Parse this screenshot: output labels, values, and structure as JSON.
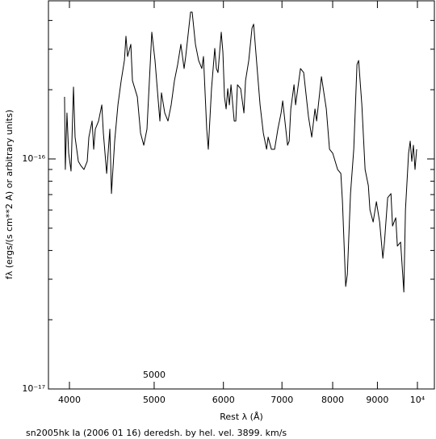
{
  "chart_data": {
    "type": "line",
    "title": "sn2005hk Ia (2006 01 16) deredsh. by hel. vel.  3899. km/s",
    "x_label": "Rest λ (Å)",
    "y_label": "fλ (ergs/(s cm**2 A) or arbitrary units)",
    "annotation": "5000",
    "color": "#000000",
    "log_x": true,
    "log_y": true,
    "xlim": [
      3785,
      10457
    ],
    "ylim": [
      1e-17,
      4.87e-16
    ],
    "xticks": [
      4000,
      5000,
      6000,
      7000,
      8000,
      9000,
      {
        "value": 10000,
        "label": "10⁴"
      }
    ],
    "yticks": [
      {
        "value": 1e-17,
        "label": "10⁻¹⁷"
      },
      {
        "value": 1e-16,
        "label": "10⁻¹⁶"
      }
    ],
    "yminorticks": [
      2e-17,
      3e-17,
      4e-17,
      5e-17,
      6e-17,
      7e-17,
      8e-17,
      9e-17,
      2e-16,
      3e-16,
      4e-16
    ],
    "x": [
      3949,
      3957,
      3974,
      3992,
      4017,
      4043,
      4060,
      4095,
      4121,
      4156,
      4192,
      4210,
      4246,
      4264,
      4282,
      4319,
      4356,
      4374,
      4412,
      4449,
      4468,
      4506,
      4545,
      4584,
      4623,
      4642,
      4662,
      4702,
      4722,
      4783,
      4824,
      4865,
      4906,
      4927,
      4969,
      5011,
      5054,
      5076,
      5097,
      5141,
      5185,
      5229,
      5274,
      5319,
      5364,
      5410,
      5433,
      5503,
      5526,
      5574,
      5621,
      5669,
      5693,
      5742,
      5766,
      5815,
      5865,
      5890,
      5915,
      5966,
      5992,
      6017,
      6043,
      6069,
      6095,
      6121,
      6173,
      6199,
      6226,
      6279,
      6333,
      6360,
      6414,
      6469,
      6497,
      6552,
      6608,
      6665,
      6722,
      6750,
      6808,
      6866,
      6925,
      6984,
      7014,
      7104,
      7134,
      7165,
      7226,
      7256,
      7350,
      7412,
      7507,
      7571,
      7636,
      7669,
      7767,
      7867,
      7934,
      8002,
      8105,
      8174,
      8209,
      8279,
      8315,
      8385,
      8457,
      8529,
      8566,
      8639,
      8713,
      8788,
      8825,
      8900,
      8976,
      9053,
      9130,
      9169,
      9247,
      9327,
      9366,
      9446,
      9486,
      9567,
      9649,
      9690,
      9770,
      9812,
      9853,
      9895,
      9937,
      9980
    ],
    "values": [
      1.863e-16,
      9e-17,
      1.585e-16,
      1.058e-16,
      8.86e-17,
      2.053e-16,
      1.244e-16,
      9.76e-17,
      9.37e-17,
      9e-17,
      9.76e-17,
      1.244e-16,
      1.462e-16,
      1.102e-16,
      1.348e-16,
      1.462e-16,
      1.718e-16,
      1.295e-16,
      8.65e-17,
      1.348e-16,
      7.07e-17,
      1.195e-16,
      1.718e-16,
      2.19e-16,
      2.68e-16,
      3.415e-16,
      2.79e-16,
      3.15e-16,
      2.19e-16,
      1.863e-16,
      1.295e-16,
      1.147e-16,
      1.348e-16,
      1.863e-16,
      3.556e-16,
      2.68e-16,
      1.789e-16,
      1.462e-16,
      1.94e-16,
      1.585e-16,
      1.462e-16,
      1.718e-16,
      2.19e-16,
      2.573e-16,
      3.15e-16,
      2.472e-16,
      2.79e-16,
      4.351e-16,
      4.351e-16,
      3.15e-16,
      2.68e-16,
      2.472e-16,
      2.79e-16,
      1.348e-16,
      1.102e-16,
      2.02e-16,
      3.025e-16,
      2.472e-16,
      2.374e-16,
      3.556e-16,
      2.905e-16,
      1.863e-16,
      1.65e-16,
      2.02e-16,
      1.718e-16,
      2.102e-16,
      1.462e-16,
      1.462e-16,
      2.102e-16,
      2.02e-16,
      1.585e-16,
      2.19e-16,
      2.68e-16,
      3.702e-16,
      3.855e-16,
      2.573e-16,
      1.718e-16,
      1.295e-16,
      1.102e-16,
      1.244e-16,
      1.102e-16,
      1.102e-16,
      1.348e-16,
      1.585e-16,
      1.789e-16,
      1.147e-16,
      1.195e-16,
      1.65e-16,
      2.102e-16,
      1.718e-16,
      2.472e-16,
      2.374e-16,
      1.522e-16,
      1.244e-16,
      1.65e-16,
      1.462e-16,
      2.28e-16,
      1.65e-16,
      1.102e-16,
      1.058e-16,
      9e-17,
      8.65e-17,
      6.52e-17,
      2.79e-17,
      3.15e-17,
      7.07e-17,
      1.102e-16,
      2.573e-16,
      2.68e-16,
      1.718e-16,
      9e-17,
      7.66e-17,
      6.01e-17,
      5.32e-17,
      6.52e-17,
      5.32e-17,
      3.7e-17,
      4.35e-17,
      6.79e-17,
      7.07e-17,
      5.11e-17,
      5.55e-17,
      4.18e-17,
      4.35e-17,
      2.64e-17,
      6.01e-17,
      1.058e-16,
      1.195e-16,
      9.76e-17,
      1.147e-16,
      9e-17,
      1.102e-16
    ]
  }
}
